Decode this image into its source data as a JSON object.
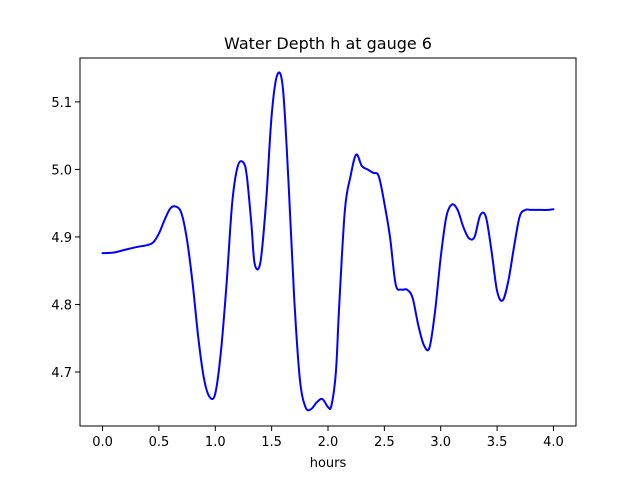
{
  "chart_data": {
    "type": "line",
    "title": "Water Depth h at gauge 6",
    "xlabel": "hours",
    "ylabel": "",
    "xlim": [
      -0.2,
      4.2
    ],
    "ylim": [
      4.62,
      5.165
    ],
    "xticks": [
      0.0,
      0.5,
      1.0,
      1.5,
      2.0,
      2.5,
      3.0,
      3.5,
      4.0
    ],
    "xtick_labels": [
      "0.0",
      "0.5",
      "1.0",
      "1.5",
      "2.0",
      "2.5",
      "3.0",
      "3.5",
      "4.0"
    ],
    "yticks": [
      4.7,
      4.8,
      4.9,
      5.0,
      5.1
    ],
    "ytick_labels": [
      "4.7",
      "4.8",
      "4.9",
      "5.0",
      "5.1"
    ],
    "grid": false,
    "series": [
      {
        "color": "#0000ff",
        "x": [
          0.0,
          0.1,
          0.2,
          0.3,
          0.4,
          0.45,
          0.5,
          0.55,
          0.6,
          0.65,
          0.7,
          0.75,
          0.8,
          0.85,
          0.9,
          0.95,
          1.0,
          1.05,
          1.1,
          1.15,
          1.2,
          1.25,
          1.28,
          1.32,
          1.35,
          1.4,
          1.45,
          1.5,
          1.55,
          1.6,
          1.65,
          1.7,
          1.75,
          1.8,
          1.85,
          1.9,
          1.95,
          2.0,
          2.03,
          2.07,
          2.1,
          2.15,
          2.2,
          2.25,
          2.3,
          2.35,
          2.4,
          2.45,
          2.5,
          2.55,
          2.6,
          2.65,
          2.7,
          2.75,
          2.8,
          2.85,
          2.9,
          2.95,
          3.0,
          3.05,
          3.1,
          3.15,
          3.2,
          3.25,
          3.3,
          3.35,
          3.4,
          3.45,
          3.5,
          3.55,
          3.6,
          3.65,
          3.7,
          3.75,
          3.8,
          3.85,
          3.9,
          3.95,
          4.0
        ],
        "y": [
          4.876,
          4.877,
          4.881,
          4.885,
          4.888,
          4.892,
          4.905,
          4.925,
          4.942,
          4.945,
          4.935,
          4.895,
          4.83,
          4.75,
          4.69,
          4.663,
          4.668,
          4.73,
          4.83,
          4.95,
          5.005,
          5.01,
          4.99,
          4.92,
          4.86,
          4.862,
          4.95,
          5.08,
          5.14,
          5.12,
          4.98,
          4.81,
          4.69,
          4.648,
          4.645,
          4.655,
          4.66,
          4.648,
          4.65,
          4.7,
          4.8,
          4.94,
          4.99,
          5.022,
          5.005,
          5.0,
          4.995,
          4.99,
          4.95,
          4.9,
          4.83,
          4.822,
          4.822,
          4.81,
          4.77,
          4.74,
          4.736,
          4.79,
          4.87,
          4.93,
          4.948,
          4.94,
          4.915,
          4.898,
          4.9,
          4.932,
          4.93,
          4.88,
          4.82,
          4.806,
          4.835,
          4.885,
          4.93,
          4.94,
          4.94,
          4.94,
          4.94,
          4.94,
          4.941
        ]
      }
    ]
  }
}
